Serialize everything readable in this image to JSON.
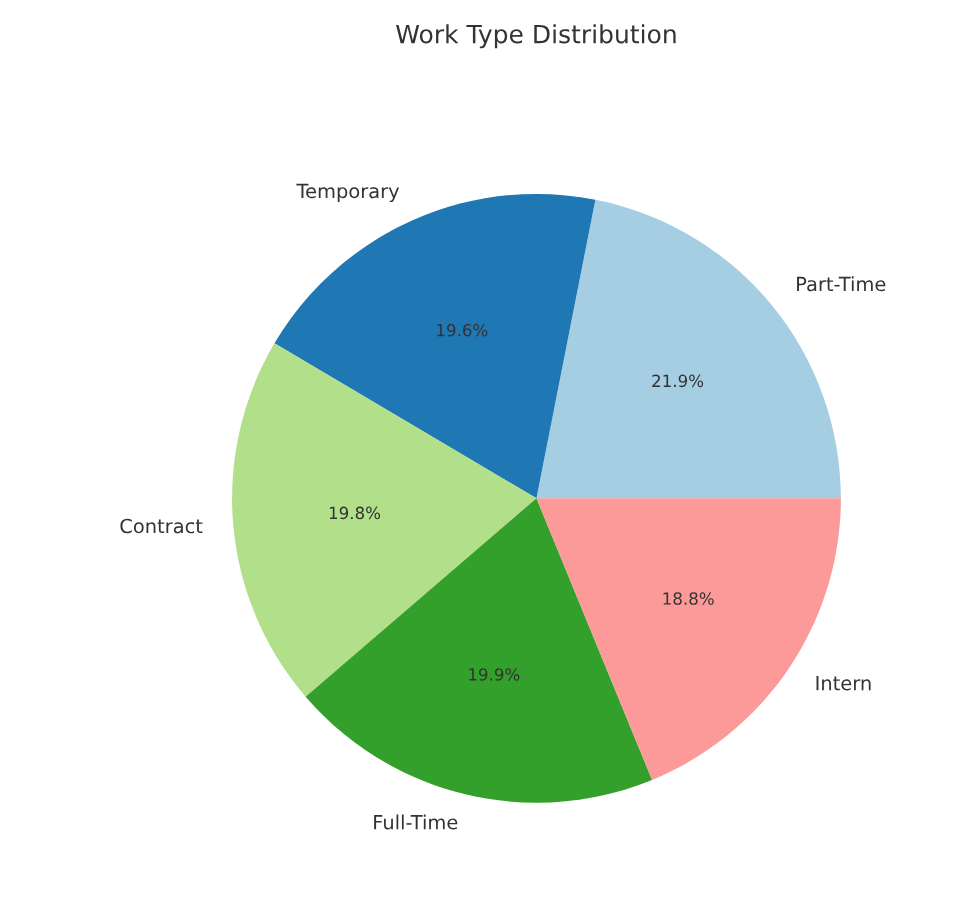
{
  "chart_data": {
    "type": "pie",
    "title": "Work Type Distribution",
    "categories": [
      "Part-Time",
      "Temporary",
      "Contract",
      "Full-Time",
      "Intern"
    ],
    "values": [
      21.9,
      19.6,
      19.8,
      19.9,
      18.8
    ],
    "value_labels": [
      "21.9%",
      "19.6%",
      "19.8%",
      "19.9%",
      "18.8%"
    ],
    "colors": [
      "#a6cee3",
      "#1f78b4",
      "#b2df8a",
      "#33a02c",
      "#fb9a99"
    ]
  }
}
